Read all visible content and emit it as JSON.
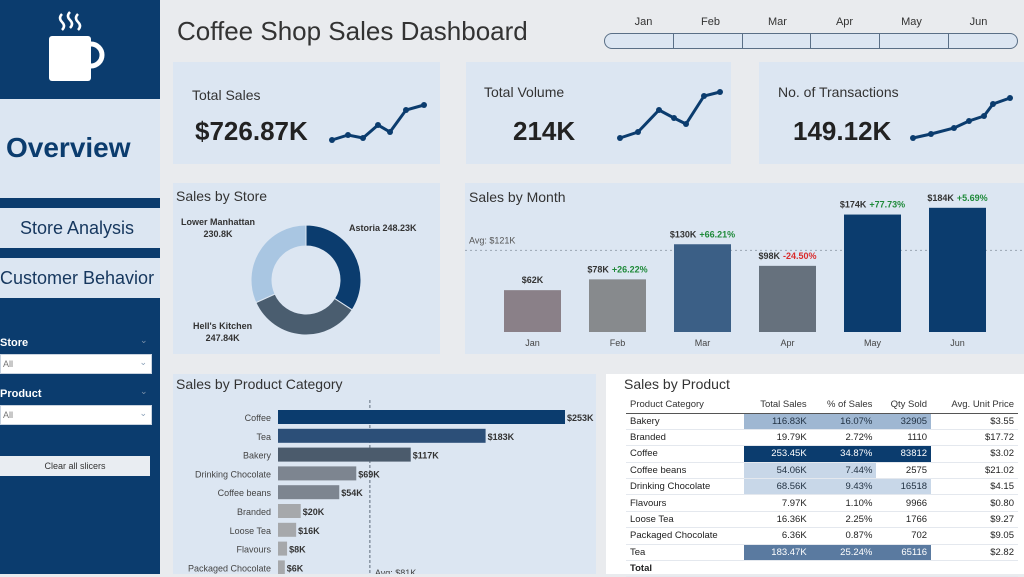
{
  "header": {
    "title": "Coffee Shop Sales Dashboard"
  },
  "logo": {
    "icon": "coffee-cup-icon"
  },
  "sidebar": {
    "overview_label": "Overview",
    "nav": [
      {
        "label": "Store Analysis"
      },
      {
        "label": "Customer Behavior"
      }
    ],
    "slicers": [
      {
        "label": "Store",
        "value": "All"
      },
      {
        "label": "Product",
        "value": "All"
      }
    ],
    "clear_label": "Clear all slicers"
  },
  "month_slicer": {
    "months": [
      "Jan",
      "Feb",
      "Mar",
      "Apr",
      "May",
      "Jun"
    ]
  },
  "kpis": [
    {
      "label": "Total Sales",
      "value": "$726.87K"
    },
    {
      "label": "Total Volume",
      "value": "214K"
    },
    {
      "label": "No. of Transactions",
      "value": "149.12K"
    }
  ],
  "panels": {
    "store": "Sales by Store",
    "month": "Sales by Month",
    "category": "Sales by Product Category",
    "product": "Sales by Product"
  },
  "colors": {
    "navy": "#0b3c6e",
    "panel": "#dce6f2",
    "positive": "#1f8a3a",
    "negative": "#d92b2b"
  },
  "chart_data": [
    {
      "type": "pie",
      "title": "Sales by Store",
      "slices": [
        {
          "label": "Astoria",
          "value": 248.23,
          "display": "Astoria 248.23K",
          "color": "#0b3c6e"
        },
        {
          "label": "Hell's Kitchen",
          "value": 247.84,
          "display": [
            "Hell's Kitchen",
            "247.84K"
          ],
          "color": "#4a5d6f"
        },
        {
          "label": "Lower Manhattan",
          "value": 230.8,
          "display": [
            "Lower Manhattan",
            "230.8K"
          ],
          "color": "#a9c6e2"
        }
      ]
    },
    {
      "type": "bar",
      "title": "Sales by Month",
      "categories": [
        "Jan",
        "Feb",
        "Mar",
        "Apr",
        "May",
        "Jun"
      ],
      "values": [
        62,
        78,
        130,
        98,
        174,
        184
      ],
      "labels": [
        "$62K",
        "$78K",
        "$130K",
        "$98K",
        "$174K",
        "$184K"
      ],
      "changes": [
        "",
        "+26.22%",
        "+66.21%",
        "-24.50%",
        "+77.73%",
        "+5.69%"
      ],
      "colors": [
        "#8a8088",
        "#878a8d",
        "#3b5f86",
        "#66717d",
        "#0b3c6e",
        "#0b3c6e"
      ],
      "average": 121,
      "average_label": "Avg: $121K",
      "ylim": [
        0,
        200
      ]
    },
    {
      "type": "bar",
      "orientation": "horizontal",
      "title": "Sales by Product Category",
      "categories": [
        "Coffee",
        "Tea",
        "Bakery",
        "Drinking Chocolate",
        "Coffee beans",
        "Branded",
        "Loose Tea",
        "Flavours",
        "Packaged Chocolate"
      ],
      "values": [
        253,
        183,
        117,
        69,
        54,
        20,
        16,
        8,
        6
      ],
      "labels": [
        "$253K",
        "$183K",
        "$117K",
        "$69K",
        "$54K",
        "$20K",
        "$16K",
        "$8K",
        "$6K"
      ],
      "average": 81,
      "average_label": "Avg: $81K",
      "xlim": [
        0,
        253
      ]
    },
    {
      "type": "table",
      "title": "Sales by Product",
      "columns": [
        "Product Category",
        "Total Sales",
        "% of Sales",
        "Qty Sold",
        "Avg. Unit Price"
      ],
      "rows": [
        [
          "Bakery",
          "116.83K",
          "16.07%",
          "32905",
          "$3.55"
        ],
        [
          "Branded",
          "19.79K",
          "2.72%",
          "1110",
          "$17.72"
        ],
        [
          "Coffee",
          "253.45K",
          "34.87%",
          "83812",
          "$3.02"
        ],
        [
          "Coffee beans",
          "54.06K",
          "7.44%",
          "2575",
          "$21.02"
        ],
        [
          "Drinking Chocolate",
          "68.56K",
          "9.43%",
          "16518",
          "$4.15"
        ],
        [
          "Flavours",
          "7.97K",
          "1.10%",
          "9966",
          "$0.80"
        ],
        [
          "Loose Tea",
          "16.36K",
          "2.25%",
          "1766",
          "$9.27"
        ],
        [
          "Packaged Chocolate",
          "6.36K",
          "0.87%",
          "702",
          "$9.05"
        ],
        [
          "Tea",
          "183.47K",
          "25.24%",
          "65116",
          "$2.82"
        ]
      ],
      "total_label": "Total"
    }
  ]
}
